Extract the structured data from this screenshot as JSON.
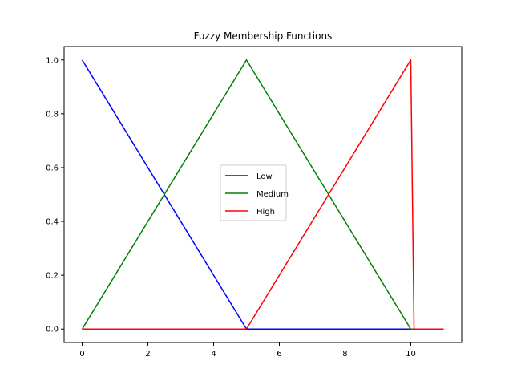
{
  "chart_data": {
    "type": "line",
    "title": "Fuzzy Membership Functions",
    "xlabel": "",
    "ylabel": "",
    "xlim": [
      -0.55,
      11.55
    ],
    "ylim": [
      -0.05,
      1.05
    ],
    "xticks": [
      0,
      2,
      4,
      6,
      8,
      10
    ],
    "yticks": [
      0.0,
      0.2,
      0.4,
      0.6,
      0.8,
      1.0
    ],
    "xtick_labels": [
      "0",
      "2",
      "4",
      "6",
      "8",
      "10"
    ],
    "ytick_labels": [
      "0.0",
      "0.2",
      "0.4",
      "0.6",
      "0.8",
      "1.0"
    ],
    "grid": false,
    "legend_position": "center",
    "series": [
      {
        "name": "Low",
        "color": "#0000ff",
        "x": [
          0,
          5,
          10,
          10.1,
          11
        ],
        "y": [
          1.0,
          0.0,
          0.0,
          0.0,
          0.0
        ]
      },
      {
        "name": "Medium",
        "color": "#008000",
        "x": [
          0,
          5,
          10,
          10.1,
          11
        ],
        "y": [
          0.0,
          1.0,
          0.0,
          0.0,
          0.0
        ]
      },
      {
        "name": "High",
        "color": "#ff0000",
        "x": [
          0,
          5,
          10,
          10.1,
          11
        ],
        "y": [
          0.0,
          0.0,
          1.0,
          0.0,
          0.0
        ]
      }
    ]
  }
}
